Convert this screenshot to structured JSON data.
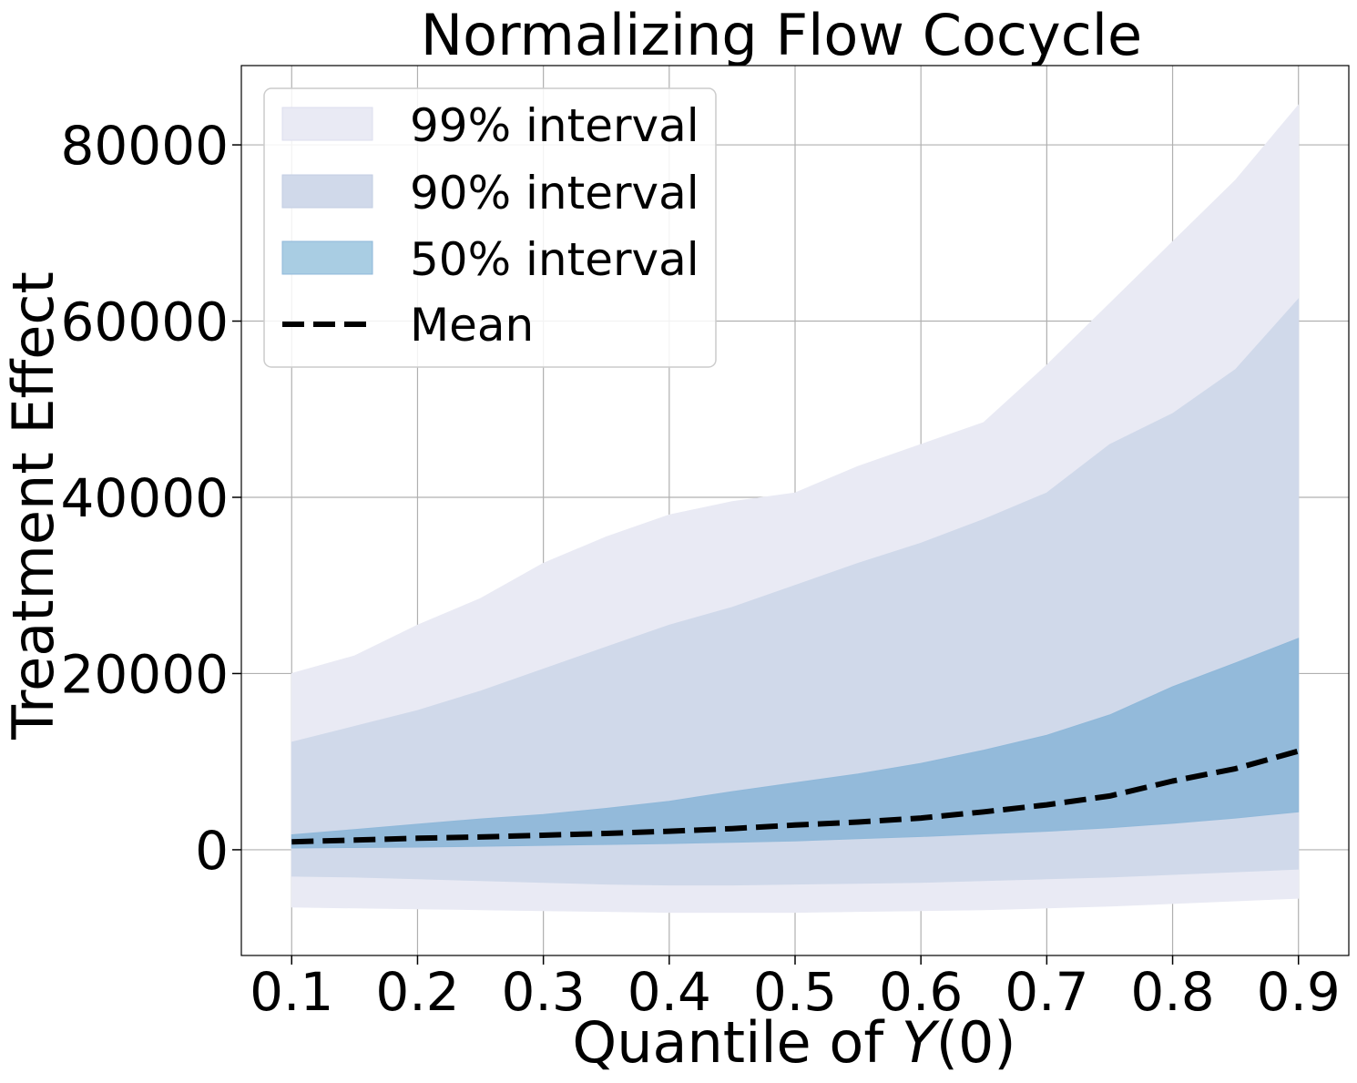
{
  "chart_data": {
    "type": "area",
    "title": "Normalizing Flow Cocycle",
    "xlabel": "Quantile of ",
    "xlabel_math": "Y",
    "xlabel_suffix": "(0)",
    "ylabel": "Treatment Effect",
    "xlim": [
      0.06,
      0.94
    ],
    "ylim": [
      -12000,
      89000
    ],
    "xticks": [
      0.1,
      0.2,
      0.3,
      0.4,
      0.5,
      0.6,
      0.7,
      0.8,
      0.9
    ],
    "xtick_labels": [
      "0.1",
      "0.2",
      "0.3",
      "0.4",
      "0.5",
      "0.6",
      "0.7",
      "0.8",
      "0.9"
    ],
    "yticks": [
      0,
      20000,
      40000,
      60000,
      80000
    ],
    "ytick_labels": [
      "0",
      "20000",
      "40000",
      "60000",
      "80000"
    ],
    "grid": true,
    "legend_position": "top-left",
    "x": [
      0.1,
      0.15,
      0.2,
      0.25,
      0.3,
      0.35,
      0.4,
      0.45,
      0.5,
      0.55,
      0.6,
      0.65,
      0.7,
      0.75,
      0.8,
      0.85,
      0.9
    ],
    "series": [
      {
        "name": "99% interval",
        "kind": "band",
        "color": "#e9eaf4",
        "lower": [
          -6500,
          -6600,
          -6700,
          -6800,
          -6900,
          -7000,
          -7100,
          -7100,
          -7100,
          -7000,
          -6900,
          -6800,
          -6600,
          -6400,
          -6100,
          -5800,
          -5500
        ],
        "upper": [
          20000,
          22000,
          25500,
          28500,
          32500,
          35500,
          38000,
          39500,
          40500,
          43500,
          46000,
          48500,
          55000,
          62000,
          69000,
          76000,
          84500
        ]
      },
      {
        "name": "90% interval",
        "kind": "band",
        "color": "#d0d9ea",
        "lower": [
          -3000,
          -3100,
          -3300,
          -3500,
          -3700,
          -3900,
          -4000,
          -4000,
          -3900,
          -3800,
          -3700,
          -3500,
          -3300,
          -3100,
          -2800,
          -2500,
          -2200
        ],
        "upper": [
          12200,
          14000,
          15800,
          18000,
          20500,
          23000,
          25500,
          27500,
          30000,
          32500,
          34800,
          37500,
          40500,
          46000,
          49500,
          54500,
          62500
        ]
      },
      {
        "name": "50% interval",
        "kind": "band",
        "color": "#8fb8d9",
        "lower": [
          200,
          250,
          300,
          400,
          500,
          600,
          700,
          850,
          1000,
          1250,
          1500,
          1800,
          2100,
          2500,
          3000,
          3600,
          4300
        ],
        "upper": [
          1700,
          2300,
          2900,
          3500,
          4000,
          4700,
          5500,
          6600,
          7600,
          8600,
          9800,
          11300,
          13000,
          15300,
          18500,
          21200,
          24000
        ]
      },
      {
        "name": "Mean",
        "kind": "line",
        "color": "#000000",
        "values": [
          900,
          1100,
          1300,
          1450,
          1650,
          1850,
          2100,
          2400,
          2800,
          3150,
          3600,
          4300,
          5100,
          6100,
          7800,
          9200,
          11200
        ]
      }
    ]
  }
}
